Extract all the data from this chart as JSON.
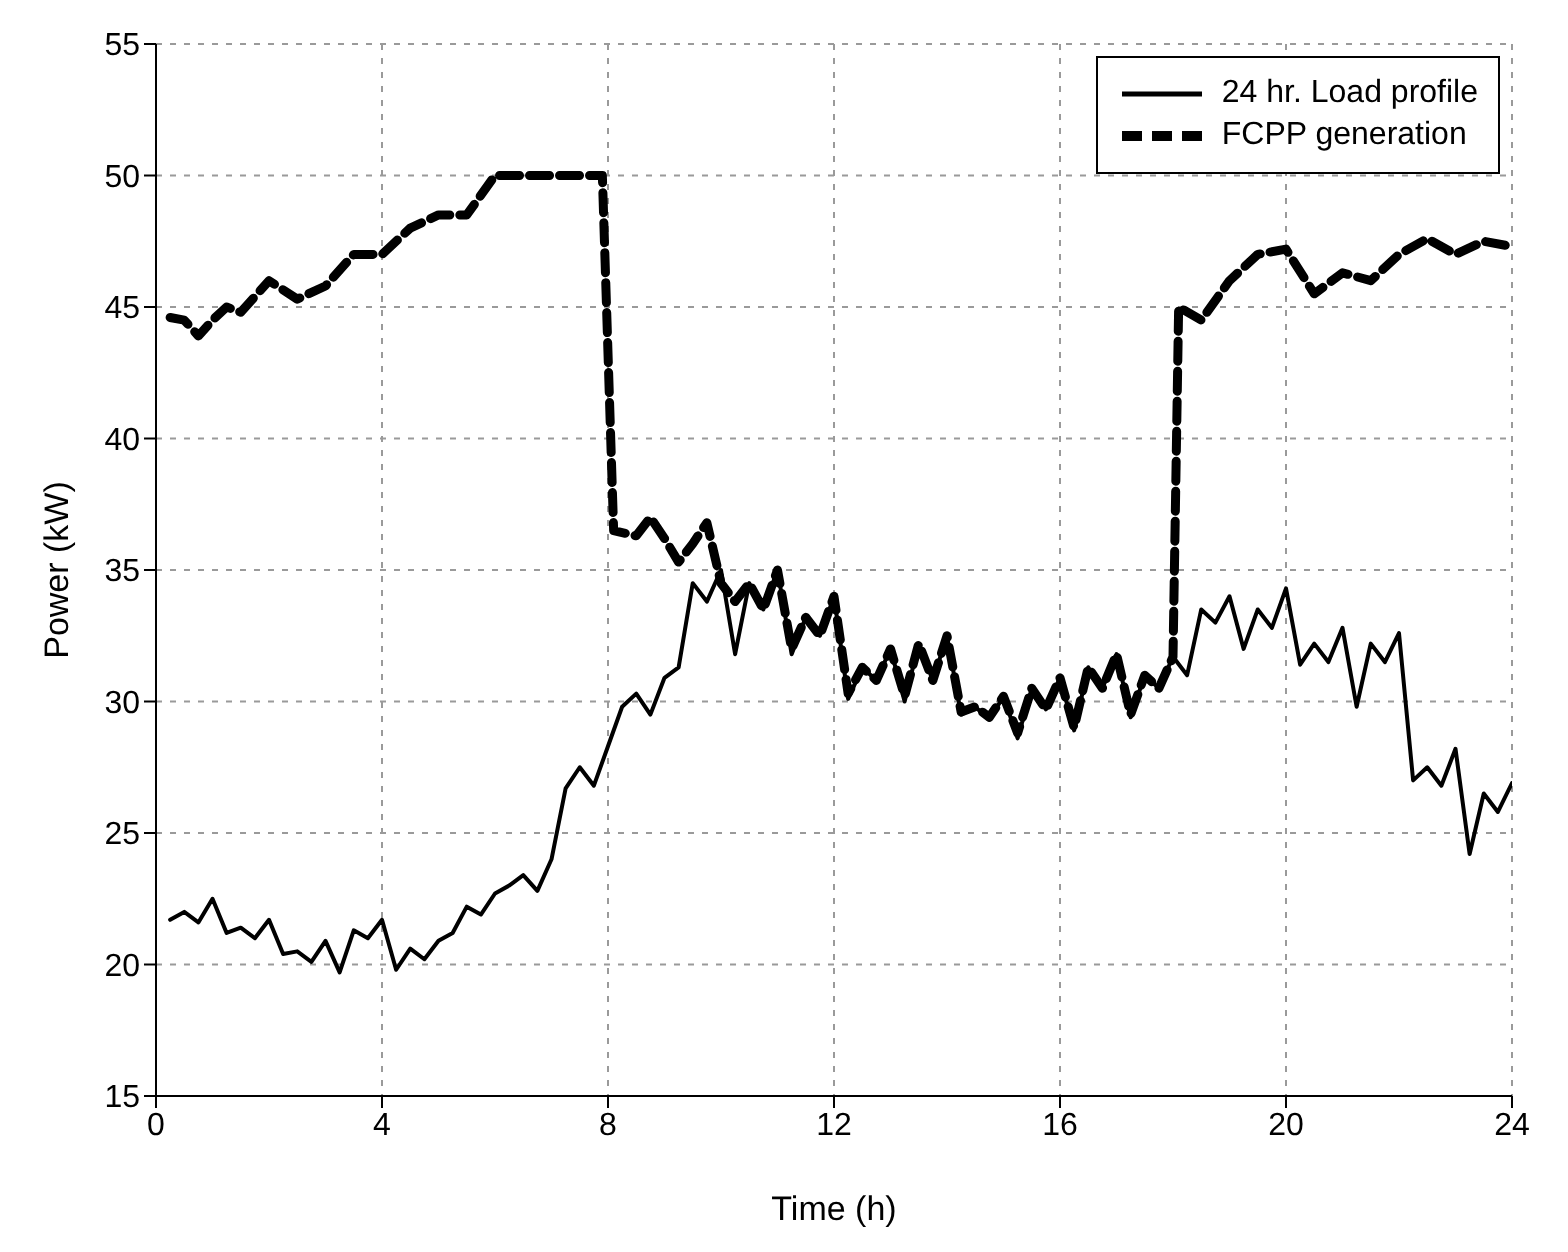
{
  "chart_data": {
    "type": "line",
    "xlabel": "Time (h)",
    "ylabel": "Power (kW)",
    "xlim": [
      0,
      24
    ],
    "xticks": [
      0,
      4,
      8,
      12,
      16,
      20,
      24
    ],
    "ylim": [
      15,
      55
    ],
    "yticks": [
      15,
      20,
      25,
      30,
      35,
      40,
      45,
      50,
      55
    ],
    "grid": true,
    "legend": "top right",
    "marker": "none",
    "series": [
      {
        "name": "24 hr. Load profile",
        "color": "#000000",
        "line_style": "solid",
        "x": [
          0.25,
          0.5,
          0.75,
          1,
          1.25,
          1.5,
          1.75,
          2,
          2.25,
          2.5,
          2.75,
          3,
          3.25,
          3.5,
          3.75,
          4,
          4.25,
          4.5,
          4.75,
          5,
          5.25,
          5.5,
          5.75,
          6,
          6.25,
          6.5,
          6.75,
          7,
          7.25,
          7.5,
          7.75,
          8,
          8.25,
          8.5,
          8.75,
          9,
          9.25,
          9.5,
          9.75,
          10,
          10.25,
          10.5,
          10.75,
          11,
          11.25,
          11.5,
          11.75,
          12,
          12.25,
          12.5,
          12.75,
          13,
          13.25,
          13.5,
          13.75,
          14,
          14.25,
          14.5,
          14.75,
          15,
          15.25,
          15.5,
          15.75,
          16,
          16.25,
          16.5,
          16.75,
          17,
          17.25,
          17.5,
          17.75,
          18,
          18.25,
          18.5,
          18.75,
          19,
          19.25,
          19.5,
          19.75,
          20,
          20.25,
          20.5,
          20.75,
          21,
          21.25,
          21.5,
          21.75,
          22,
          22.25,
          22.5,
          22.75,
          23,
          23.25,
          23.5,
          23.75,
          24
        ],
        "values": [
          21.7,
          22,
          21.6,
          22.5,
          21.2,
          21.4,
          21,
          21.7,
          20.4,
          20.5,
          20.1,
          20.9,
          19.7,
          21.3,
          21,
          21.7,
          19.8,
          20.6,
          20.2,
          20.9,
          21.2,
          22.2,
          21.9,
          22.7,
          23,
          23.4,
          22.8,
          24,
          26.7,
          27.5,
          26.8,
          28.3,
          29.8,
          30.3,
          29.5,
          30.9,
          31.3,
          34.5,
          33.8,
          35,
          31.8,
          34.5,
          33.5,
          35,
          31.8,
          33.2,
          32.5,
          34,
          30.1,
          31.3,
          30.8,
          32,
          30,
          32.2,
          30.8,
          32.5,
          29.5,
          29.8,
          29.3,
          30.2,
          28.6,
          30.5,
          29.7,
          30.9,
          28.9,
          31.3,
          30.5,
          31.8,
          29.4,
          31,
          30.5,
          31.7,
          31,
          33.5,
          33,
          34,
          32,
          33.5,
          32.8,
          34.3,
          31.4,
          32.2,
          31.5,
          32.8,
          29.8,
          32.2,
          31.5,
          32.6,
          27,
          27.5,
          26.8,
          28.2,
          24.2,
          26.5,
          25.8,
          26.9
        ]
      },
      {
        "name": "FCPP generation",
        "color": "#000000",
        "line_style": "dashed",
        "x": [
          0.25,
          0.5,
          0.75,
          1,
          1.25,
          1.5,
          2,
          2.5,
          3,
          3.5,
          4,
          4.5,
          5,
          5.5,
          6,
          7,
          7.9,
          8.1,
          8.5,
          8.75,
          9,
          9.25,
          9.5,
          9.75,
          10,
          10.25,
          10.5,
          10.75,
          11,
          11.25,
          11.5,
          11.75,
          12,
          12.25,
          12.5,
          12.75,
          13,
          13.25,
          13.5,
          13.75,
          14,
          14.25,
          14.5,
          14.75,
          15,
          15.25,
          15.5,
          15.75,
          16,
          16.25,
          16.5,
          16.75,
          17,
          17.25,
          17.5,
          17.75,
          18,
          18.1,
          18.5,
          19,
          19.5,
          20,
          20.5,
          21,
          21.5,
          22,
          22.5,
          23,
          23.5,
          24
        ],
        "values": [
          44.6,
          44.5,
          43.9,
          44.5,
          45,
          44.8,
          46,
          45.3,
          45.8,
          47,
          47,
          48,
          48.5,
          48.5,
          50,
          50,
          50,
          36.5,
          36.3,
          37,
          36.2,
          35.3,
          36,
          36.8,
          34.5,
          33.8,
          34.5,
          33.5,
          35,
          32,
          33.2,
          32.5,
          34,
          30.3,
          31.3,
          30.8,
          32,
          30.2,
          32.2,
          30.8,
          32.5,
          29.6,
          29.8,
          29.4,
          30.2,
          28.8,
          30.5,
          29.7,
          30.9,
          29,
          31.3,
          30.5,
          31.8,
          29.5,
          31,
          30.5,
          31.7,
          45,
          44.5,
          46,
          47,
          47.2,
          45.5,
          46.3,
          46,
          47,
          47.6,
          47,
          47.5,
          47.3
        ]
      }
    ]
  }
}
